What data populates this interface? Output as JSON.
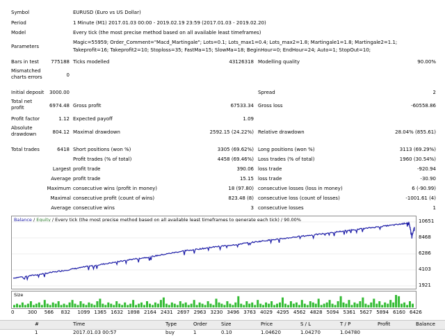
{
  "rows": [
    {
      "label": "Symbol",
      "value": "EURUSD (Euro vs US Dollar)"
    },
    {
      "label": "Period",
      "value": "1 Minute (M1) 2017.01.03 00:00 - 2019.02.19 23:59 (2017.01.03 - 2019.02.20)"
    },
    {
      "label": "Model",
      "value": "Every tick (the most precise method based on all available least timeframes)"
    },
    {
      "label": "Parameters",
      "value": "Magic=55959; Order_Comment=\"Macd_Martingale\"; Lots=0.1; Lots_max1=0.4; Lots_max2=1.8; Martingale1=1.8; Martingale2=1.1;",
      "value2": "Takeprofit=16; Takeprofit2=10; Stoploss=35; FastMa=15; SlowMa=18; BeginHour=0; EndHour=24; Auto=1; StopOut=10;"
    }
  ],
  "stats": {
    "bars_label": "Bars in test",
    "bars_value": "775188",
    "ticks_label": "Ticks modelled",
    "ticks_value": "43126318",
    "quality_label": "Modelling quality",
    "quality_value": "90.00%",
    "mismatch_label": "Mismatched charts errors",
    "mismatch_value": "0",
    "deposit_label": "Initial deposit",
    "deposit_value": "3000.00",
    "spread_label": "Spread",
    "spread_value": "2",
    "netprofit_label": "Total net profit",
    "netprofit_value": "6974.48",
    "grossprofit_label": "Gross profit",
    "grossprofit_value": "67533.34",
    "grossloss_label": "Gross loss",
    "grossloss_value": "-60558.86",
    "pf_label": "Profit factor",
    "pf_value": "1.12",
    "payoff_label": "Expected payoff",
    "payoff_value": "1.09",
    "absdd_label": "Absolute drawdown",
    "absdd_value": "804.12",
    "maxdd_label": "Maximal drawdown",
    "maxdd_value": "2592.15 (24.22%)",
    "reldd_label": "Relative drawdown",
    "reldd_value": "28.04% (855.61)",
    "trades_label": "Total trades",
    "trades_value": "6418",
    "short_label": "Short positions (won %)",
    "short_value": "3305 (69.62%)",
    "long_label": "Long positions (won %)",
    "long_value": "3113 (69.29%)",
    "profit_trades_label": "Profit trades (% of total)",
    "profit_trades_value": "4458 (69.46%)",
    "loss_trades_label": "Loss trades (% of total)",
    "loss_trades_value": "1960 (30.54%)",
    "largest_label": "Largest",
    "largest_profit_label": "profit trade",
    "largest_profit_value": "390.06",
    "largest_loss_label": "loss trade",
    "largest_loss_value": "-920.94",
    "average_label": "Average",
    "average_profit_label": "profit trade",
    "average_profit_value": "15.15",
    "average_loss_label": "loss trade",
    "average_loss_value": "-30.90",
    "maximum_label": "Maximum",
    "max_wins_label": "consecutive wins (profit in money)",
    "max_wins_value": "18 (97.80)",
    "max_losses_label": "consecutive losses (loss in money)",
    "max_losses_value": "6 (-90.99)",
    "maximal_label": "Maximal",
    "maximal_profit_label": "consecutive profit (count of wins)",
    "maximal_profit_value": "823.48 (8)",
    "maximal_loss_label": "consecutive loss (count of losses)",
    "maximal_loss_value": "-1001.61 (4)",
    "average2_label": "Average",
    "avg_wins_label": "consecutive wins",
    "avg_wins_value": "3",
    "avg_losses_label": "consecutive losses",
    "avg_losses_value": "1"
  },
  "chart": {
    "legend_balance": "Balance",
    "legend_sep": " / ",
    "legend_equity": "Equity",
    "legend_rest": " / Every tick (the most precise method based on all available least timeframes to generate each tick) / 90.00%",
    "size_label": "Size",
    "colors": {
      "balance": "#1a1aa6",
      "equity": "#2a7a2a",
      "volume": "#33bb33",
      "frame": "#8c8c8c"
    }
  },
  "chart_data": {
    "type": "line",
    "x_ticks": [
      "0",
      "300",
      "566",
      "832",
      "1099",
      "1365",
      "1632",
      "1898",
      "2164",
      "2431",
      "2697",
      "2963",
      "3230",
      "3496",
      "3763",
      "4029",
      "4295",
      "4562",
      "4828",
      "5094",
      "5361",
      "5627",
      "5894",
      "6160",
      "6426"
    ],
    "y_ticks": [
      "10651",
      "8468",
      "6286",
      "4103",
      "1921"
    ],
    "ylim": [
      1921,
      10651
    ],
    "xlim": [
      0,
      6418
    ],
    "balance": [
      [
        0,
        3000
      ],
      [
        300,
        3350
      ],
      [
        566,
        3700
      ],
      [
        832,
        4050
      ],
      [
        1099,
        4450
      ],
      [
        1365,
        4800
      ],
      [
        1632,
        5150
      ],
      [
        1898,
        5550
      ],
      [
        2164,
        5850
      ],
      [
        2431,
        6250
      ],
      [
        2697,
        6650
      ],
      [
        2963,
        6950
      ],
      [
        3230,
        7250
      ],
      [
        3496,
        7500
      ],
      [
        3763,
        7800
      ],
      [
        4029,
        8100
      ],
      [
        4295,
        8350
      ],
      [
        4562,
        8650
      ],
      [
        4828,
        8900
      ],
      [
        5094,
        9200
      ],
      [
        5361,
        9500
      ],
      [
        5627,
        9750
      ],
      [
        5894,
        10050
      ],
      [
        6160,
        10300
      ],
      [
        6330,
        10550
      ],
      [
        6380,
        8700
      ],
      [
        6418,
        9950
      ]
    ],
    "volume": [
      2,
      3,
      2,
      4,
      2,
      3,
      5,
      2,
      3,
      4,
      2,
      6,
      3,
      2,
      4,
      3,
      5,
      2,
      3,
      2,
      4,
      6,
      3,
      2,
      5,
      3,
      2,
      4,
      3,
      2,
      5,
      7,
      3,
      2,
      4,
      3,
      2,
      5,
      3,
      2,
      4,
      2,
      3,
      6,
      2,
      3,
      4,
      2,
      5,
      3,
      2,
      4,
      3,
      6,
      8,
      3,
      2,
      4,
      3,
      2,
      5,
      3,
      4,
      2,
      3,
      6,
      2,
      4,
      3,
      2,
      5,
      3,
      2,
      7,
      4,
      3,
      2,
      5,
      3,
      2,
      4,
      9,
      3,
      2,
      5,
      3,
      4,
      2,
      6,
      3,
      2,
      4,
      3,
      5,
      2,
      3,
      4,
      8,
      3,
      2,
      5,
      3,
      4,
      2,
      6,
      3,
      2,
      5,
      4,
      3,
      7,
      2,
      3,
      4,
      6,
      3,
      2,
      5,
      9,
      4,
      3,
      6,
      2,
      4,
      3,
      5,
      8,
      3,
      2,
      4,
      7,
      3,
      5,
      2,
      4,
      3,
      6,
      4,
      10,
      9,
      3,
      4,
      2,
      5,
      3
    ],
    "volume_max": 10
  },
  "table": {
    "columns": [
      "#",
      "Time",
      "Type",
      "Order",
      "Size",
      "Price",
      "S / L",
      "T / P",
      "Profit",
      "Balance"
    ],
    "row": [
      "1",
      "2017.01.03 00:57",
      "buy",
      "1",
      "0.10",
      "1.04620",
      "1.04270",
      "1.04780",
      "",
      ""
    ]
  }
}
